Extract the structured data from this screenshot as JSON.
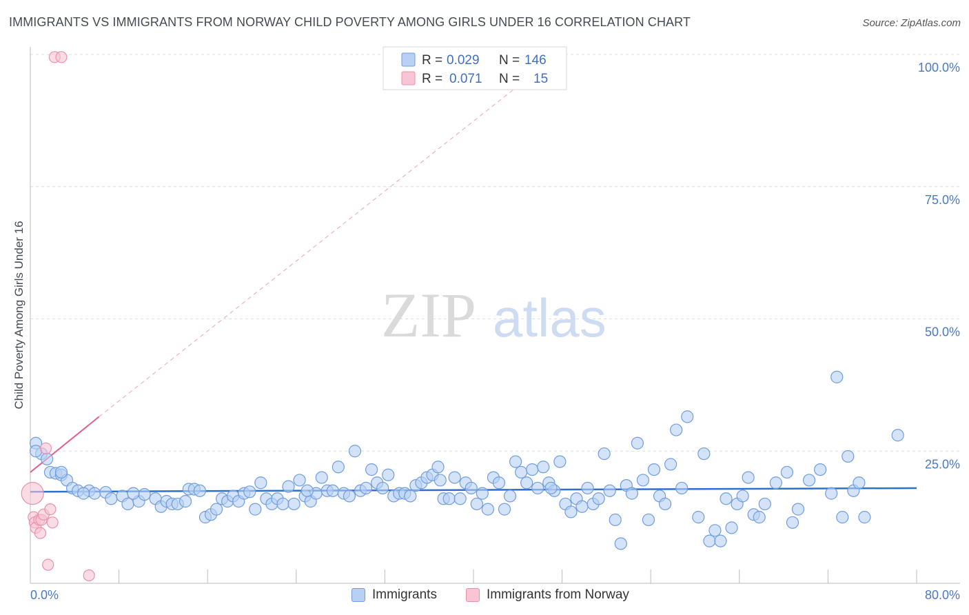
{
  "header": {
    "title": "IMMIGRANTS VS IMMIGRANTS FROM NORWAY CHILD POVERTY AMONG GIRLS UNDER 16 CORRELATION CHART",
    "source": "Source: ZipAtlas.com"
  },
  "watermark": {
    "zip": "ZIP",
    "atlas": "atlas"
  },
  "legend": {
    "series1": {
      "r_label": "R =",
      "r_value": "0.029",
      "n_label": "N =",
      "n_value": "146"
    },
    "series2": {
      "r_label": "R =",
      "r_value": "0.071",
      "n_label": "N =",
      "n_value": "15"
    }
  },
  "colors": {
    "blue_fill": "#b8d0f3",
    "blue_stroke": "#6f9de0",
    "blue_line": "#2f6fcf",
    "pink_fill": "#f7c5d4",
    "pink_stroke": "#ec8fab",
    "pink_line": "#e0608a",
    "grid": "#dddddd",
    "tick_text": "#4a78c8"
  },
  "chart_data": {
    "type": "scatter",
    "title": "IMMIGRANTS VS IMMIGRANTS FROM NORWAY CHILD POVERTY AMONG GIRLS UNDER 16 CORRELATION CHART",
    "xlabel": "",
    "ylabel": "Child Poverty Among Girls Under 16",
    "xlim": [
      0,
      80
    ],
    "ylim": [
      0,
      100
    ],
    "x_tick_labels": [
      "0.0%",
      "80.0%"
    ],
    "y_ticks": [
      25,
      50,
      75,
      100
    ],
    "y_tick_labels": [
      "25.0%",
      "50.0%",
      "75.0%",
      "100.0%"
    ],
    "grid": true,
    "series": [
      {
        "name": "Immigrants",
        "r": 0.029,
        "n": 146,
        "trend": {
          "x": [
            0,
            80
          ],
          "y": [
            17.3,
            18.0
          ],
          "style": "solid"
        },
        "points": [
          [
            0.5,
            26.5
          ],
          [
            1.0,
            24.5
          ],
          [
            1.5,
            23.5
          ],
          [
            1.8,
            21.0
          ],
          [
            2.3,
            20.8
          ],
          [
            2.8,
            20.5
          ],
          [
            3.3,
            19.5
          ],
          [
            3.8,
            18.0
          ],
          [
            4.3,
            17.5
          ],
          [
            5.3,
            17.5
          ],
          [
            5.8,
            17.0
          ],
          [
            6.8,
            17.2
          ],
          [
            7.3,
            16.0
          ],
          [
            8.3,
            16.5
          ],
          [
            8.8,
            15.0
          ],
          [
            9.8,
            15.5
          ],
          [
            10.3,
            16.8
          ],
          [
            11.3,
            16.0
          ],
          [
            11.8,
            14.5
          ],
          [
            12.3,
            15.5
          ],
          [
            12.8,
            15.0
          ],
          [
            13.3,
            15.0
          ],
          [
            14.3,
            17.8
          ],
          [
            14.8,
            17.8
          ],
          [
            15.3,
            17.5
          ],
          [
            15.8,
            12.5
          ],
          [
            16.3,
            13.0
          ],
          [
            16.8,
            14.0
          ],
          [
            17.3,
            16.0
          ],
          [
            17.8,
            15.5
          ],
          [
            18.3,
            16.5
          ],
          [
            18.8,
            15.5
          ],
          [
            19.3,
            17.0
          ],
          [
            19.8,
            17.3
          ],
          [
            20.3,
            14.0
          ],
          [
            20.8,
            19.0
          ],
          [
            21.3,
            16.0
          ],
          [
            21.8,
            15.0
          ],
          [
            22.3,
            16.0
          ],
          [
            22.8,
            15.0
          ],
          [
            23.3,
            18.3
          ],
          [
            23.8,
            15.0
          ],
          [
            24.3,
            19.5
          ],
          [
            24.8,
            16.5
          ],
          [
            25.3,
            15.5
          ],
          [
            25.8,
            17.0
          ],
          [
            26.3,
            20.0
          ],
          [
            26.8,
            17.5
          ],
          [
            27.3,
            17.5
          ],
          [
            27.8,
            22.0
          ],
          [
            28.3,
            17.0
          ],
          [
            28.8,
            16.5
          ],
          [
            29.3,
            25.0
          ],
          [
            29.8,
            17.5
          ],
          [
            30.3,
            18.0
          ],
          [
            30.8,
            21.5
          ],
          [
            31.3,
            19.0
          ],
          [
            31.8,
            18.0
          ],
          [
            32.3,
            20.5
          ],
          [
            32.8,
            16.5
          ],
          [
            33.3,
            17.0
          ],
          [
            33.8,
            17.0
          ],
          [
            34.3,
            16.5
          ],
          [
            34.8,
            18.5
          ],
          [
            35.3,
            19.0
          ],
          [
            35.8,
            20.0
          ],
          [
            36.3,
            20.5
          ],
          [
            36.8,
            22.0
          ],
          [
            37.3,
            16.0
          ],
          [
            37.8,
            16.0
          ],
          [
            38.3,
            20.0
          ],
          [
            38.8,
            16.0
          ],
          [
            39.3,
            19.0
          ],
          [
            39.8,
            18.0
          ],
          [
            40.3,
            15.0
          ],
          [
            40.8,
            17.0
          ],
          [
            41.3,
            14.0
          ],
          [
            41.8,
            20.0
          ],
          [
            42.3,
            19.0
          ],
          [
            42.8,
            14.0
          ],
          [
            43.3,
            16.5
          ],
          [
            43.8,
            23.0
          ],
          [
            44.3,
            21.0
          ],
          [
            44.8,
            19.0
          ],
          [
            45.3,
            21.5
          ],
          [
            45.8,
            18.0
          ],
          [
            46.3,
            22.0
          ],
          [
            46.8,
            19.0
          ],
          [
            47.3,
            17.5
          ],
          [
            47.8,
            23.0
          ],
          [
            48.3,
            15.0
          ],
          [
            48.8,
            13.5
          ],
          [
            49.3,
            16.0
          ],
          [
            49.8,
            14.5
          ],
          [
            50.3,
            18.0
          ],
          [
            50.8,
            15.0
          ],
          [
            51.3,
            16.0
          ],
          [
            51.8,
            24.5
          ],
          [
            52.3,
            17.5
          ],
          [
            52.8,
            12.0
          ],
          [
            53.3,
            7.5
          ],
          [
            53.8,
            18.5
          ],
          [
            54.3,
            17.0
          ],
          [
            54.8,
            26.5
          ],
          [
            55.3,
            19.5
          ],
          [
            55.8,
            12.0
          ],
          [
            56.3,
            21.5
          ],
          [
            56.8,
            16.5
          ],
          [
            57.3,
            15.0
          ],
          [
            57.8,
            22.5
          ],
          [
            58.3,
            29.0
          ],
          [
            58.8,
            18.0
          ],
          [
            59.3,
            31.5
          ],
          [
            60.3,
            12.5
          ],
          [
            60.8,
            24.5
          ],
          [
            61.3,
            8.0
          ],
          [
            61.8,
            10.0
          ],
          [
            62.3,
            8.0
          ],
          [
            62.8,
            16.0
          ],
          [
            63.3,
            10.5
          ],
          [
            63.8,
            15.0
          ],
          [
            64.3,
            16.5
          ],
          [
            64.8,
            20.0
          ],
          [
            65.3,
            13.0
          ],
          [
            65.8,
            12.5
          ],
          [
            66.3,
            15.0
          ],
          [
            67.3,
            19.0
          ],
          [
            68.3,
            21.0
          ],
          [
            68.8,
            11.5
          ],
          [
            69.3,
            14.0
          ],
          [
            70.3,
            19.5
          ],
          [
            71.3,
            21.5
          ],
          [
            72.3,
            17.0
          ],
          [
            72.8,
            39.0
          ],
          [
            73.3,
            12.5
          ],
          [
            73.8,
            24.0
          ],
          [
            74.3,
            17.5
          ],
          [
            74.8,
            19.0
          ],
          [
            75.3,
            12.5
          ],
          [
            78.3,
            28.0
          ],
          [
            0.5,
            25.0
          ],
          [
            2.8,
            21.0
          ],
          [
            4.8,
            17.0
          ],
          [
            9.3,
            17.0
          ],
          [
            14.0,
            15.5
          ],
          [
            25.0,
            17.5
          ],
          [
            37.0,
            19.5
          ],
          [
            47.0,
            18.0
          ]
        ]
      },
      {
        "name": "Immigrants from Norway",
        "r": 0.071,
        "n": 15,
        "trend": {
          "x": [
            0,
            6.2
          ],
          "y": [
            21.0,
            31.5
          ],
          "ext_x": [
            6.2,
            44
          ],
          "ext_y": [
            31.5,
            94
          ],
          "style": "solid+dashed"
        },
        "points": [
          [
            0.2,
            17.0
          ],
          [
            0.3,
            12.5
          ],
          [
            0.4,
            11.5
          ],
          [
            0.5,
            10.5
          ],
          [
            0.8,
            12.0
          ],
          [
            0.9,
            9.5
          ],
          [
            1.0,
            12.0
          ],
          [
            1.2,
            13.0
          ],
          [
            1.4,
            25.5
          ],
          [
            1.6,
            3.5
          ],
          [
            1.8,
            14.0
          ],
          [
            2.0,
            11.5
          ],
          [
            2.2,
            99.5
          ],
          [
            2.8,
            99.5
          ],
          [
            5.3,
            1.5
          ]
        ]
      }
    ]
  },
  "bottom_legend": {
    "item1": "Immigrants",
    "item2": "Immigrants from Norway"
  }
}
